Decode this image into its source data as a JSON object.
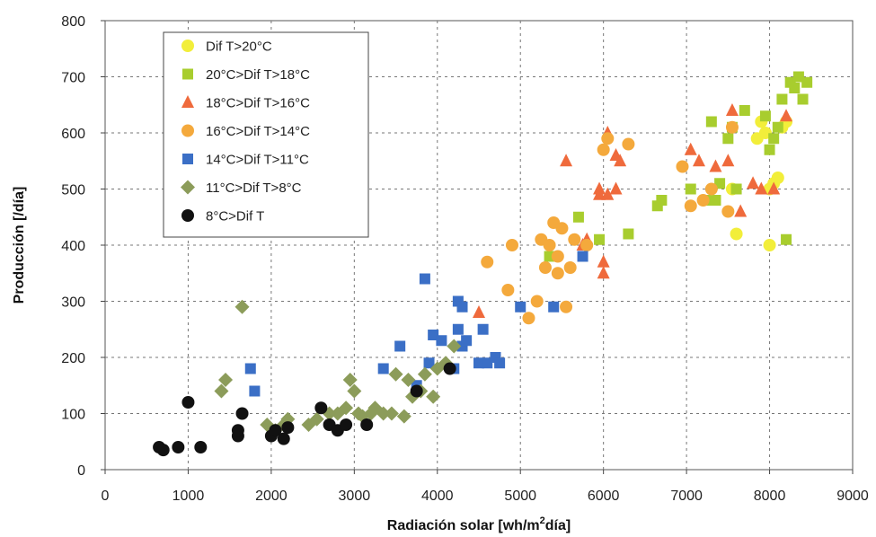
{
  "chart_data": {
    "type": "scatter",
    "xlabel_main": "Radiación solar [wh/m",
    "xlabel_sup": "2",
    "xlabel_tail": "día]",
    "ylabel": "Producción [/día]",
    "xlim": [
      0,
      9000
    ],
    "ylim": [
      0,
      800
    ],
    "xticks": [
      0,
      1000,
      2000,
      3000,
      4000,
      5000,
      6000,
      7000,
      8000,
      9000
    ],
    "yticks": [
      0,
      100,
      200,
      300,
      400,
      500,
      600,
      700,
      800
    ],
    "grid": true,
    "legend_position": "top-left",
    "series": [
      {
        "name": "Dif T>20°C",
        "marker": "circle",
        "color": "#f2ee3a",
        "points": [
          [
            7550,
            500
          ],
          [
            7600,
            420
          ],
          [
            7850,
            590
          ],
          [
            7900,
            620
          ],
          [
            7950,
            600
          ],
          [
            8000,
            400
          ],
          [
            8000,
            500
          ],
          [
            8050,
            510
          ],
          [
            8100,
            520
          ],
          [
            8150,
            610
          ],
          [
            8200,
            620
          ]
        ]
      },
      {
        "name": "20°C>Dif T>18°C",
        "marker": "square",
        "color": "#a8cd2e",
        "points": [
          [
            5350,
            380
          ],
          [
            5700,
            450
          ],
          [
            5950,
            410
          ],
          [
            6300,
            420
          ],
          [
            6650,
            470
          ],
          [
            6700,
            480
          ],
          [
            7050,
            500
          ],
          [
            7250,
            480
          ],
          [
            7300,
            620
          ],
          [
            7350,
            480
          ],
          [
            7400,
            510
          ],
          [
            7500,
            590
          ],
          [
            7550,
            610
          ],
          [
            7600,
            500
          ],
          [
            7700,
            640
          ],
          [
            7950,
            630
          ],
          [
            8000,
            570
          ],
          [
            8050,
            590
          ],
          [
            8100,
            610
          ],
          [
            8150,
            660
          ],
          [
            8200,
            410
          ],
          [
            8250,
            690
          ],
          [
            8300,
            680
          ],
          [
            8350,
            700
          ],
          [
            8400,
            660
          ],
          [
            8450,
            690
          ]
        ]
      },
      {
        "name": "18°C>Dif T>16°C",
        "marker": "triangle",
        "color": "#ef6a3c",
        "points": [
          [
            4500,
            280
          ],
          [
            5550,
            550
          ],
          [
            5750,
            400
          ],
          [
            5800,
            410
          ],
          [
            5950,
            500
          ],
          [
            5950,
            490
          ],
          [
            6000,
            370
          ],
          [
            6000,
            350
          ],
          [
            6050,
            600
          ],
          [
            6050,
            490
          ],
          [
            6150,
            560
          ],
          [
            6150,
            500
          ],
          [
            6200,
            550
          ],
          [
            7050,
            570
          ],
          [
            7150,
            550
          ],
          [
            7350,
            540
          ],
          [
            7500,
            550
          ],
          [
            7550,
            640
          ],
          [
            7650,
            460
          ],
          [
            7800,
            510
          ],
          [
            7900,
            500
          ],
          [
            8050,
            500
          ],
          [
            8200,
            630
          ]
        ]
      },
      {
        "name": "16°C>Dif T>14°C",
        "marker": "circle",
        "color": "#f4a93c",
        "points": [
          [
            4600,
            370
          ],
          [
            4850,
            320
          ],
          [
            4900,
            400
          ],
          [
            5100,
            270
          ],
          [
            5200,
            300
          ],
          [
            5250,
            410
          ],
          [
            5300,
            360
          ],
          [
            5350,
            400
          ],
          [
            5400,
            440
          ],
          [
            5450,
            350
          ],
          [
            5450,
            380
          ],
          [
            5500,
            430
          ],
          [
            5550,
            290
          ],
          [
            5600,
            360
          ],
          [
            5650,
            410
          ],
          [
            5800,
            400
          ],
          [
            6000,
            570
          ],
          [
            6050,
            590
          ],
          [
            6300,
            580
          ],
          [
            6950,
            540
          ],
          [
            7050,
            470
          ],
          [
            7200,
            480
          ],
          [
            7300,
            500
          ],
          [
            7500,
            460
          ],
          [
            7550,
            610
          ]
        ]
      },
      {
        "name": "14°C>Dif T>11°C",
        "marker": "square",
        "color": "#3b6fc6",
        "points": [
          [
            3350,
            180
          ],
          [
            3550,
            220
          ],
          [
            3750,
            150
          ],
          [
            3850,
            340
          ],
          [
            3900,
            190
          ],
          [
            3950,
            240
          ],
          [
            4050,
            230
          ],
          [
            4200,
            180
          ],
          [
            4250,
            250
          ],
          [
            4250,
            300
          ],
          [
            4300,
            220
          ],
          [
            4300,
            290
          ],
          [
            4350,
            230
          ],
          [
            4500,
            190
          ],
          [
            4550,
            250
          ],
          [
            4600,
            190
          ],
          [
            4700,
            200
          ],
          [
            4750,
            190
          ],
          [
            5000,
            290
          ],
          [
            5400,
            290
          ],
          [
            5750,
            380
          ],
          [
            1750,
            180
          ],
          [
            1800,
            140
          ]
        ]
      },
      {
        "name": "11°C>Dif T>8°C",
        "marker": "diamond",
        "color": "#8c9c5a",
        "points": [
          [
            1400,
            140
          ],
          [
            1450,
            160
          ],
          [
            1650,
            290
          ],
          [
            1950,
            80
          ],
          [
            2050,
            70
          ],
          [
            2150,
            80
          ],
          [
            2200,
            90
          ],
          [
            2450,
            80
          ],
          [
            2550,
            90
          ],
          [
            2700,
            100
          ],
          [
            2800,
            100
          ],
          [
            2900,
            110
          ],
          [
            2950,
            160
          ],
          [
            3000,
            140
          ],
          [
            3050,
            100
          ],
          [
            3100,
            95
          ],
          [
            3200,
            100
          ],
          [
            3250,
            110
          ],
          [
            3350,
            100
          ],
          [
            3450,
            100
          ],
          [
            3500,
            170
          ],
          [
            3600,
            95
          ],
          [
            3650,
            160
          ],
          [
            3700,
            130
          ],
          [
            3800,
            140
          ],
          [
            3850,
            170
          ],
          [
            3950,
            130
          ],
          [
            4000,
            180
          ],
          [
            4100,
            190
          ],
          [
            4200,
            220
          ]
        ]
      },
      {
        "name": "8°C>Dif T",
        "marker": "circle",
        "color": "#111111",
        "points": [
          [
            650,
            40
          ],
          [
            700,
            35
          ],
          [
            880,
            40
          ],
          [
            1000,
            120
          ],
          [
            1150,
            40
          ],
          [
            1600,
            60
          ],
          [
            1600,
            70
          ],
          [
            1650,
            100
          ],
          [
            2000,
            60
          ],
          [
            2050,
            70
          ],
          [
            2150,
            55
          ],
          [
            2200,
            75
          ],
          [
            2600,
            110
          ],
          [
            2700,
            80
          ],
          [
            2800,
            70
          ],
          [
            2900,
            80
          ],
          [
            3150,
            80
          ],
          [
            3750,
            140
          ],
          [
            4150,
            180
          ]
        ]
      }
    ]
  }
}
